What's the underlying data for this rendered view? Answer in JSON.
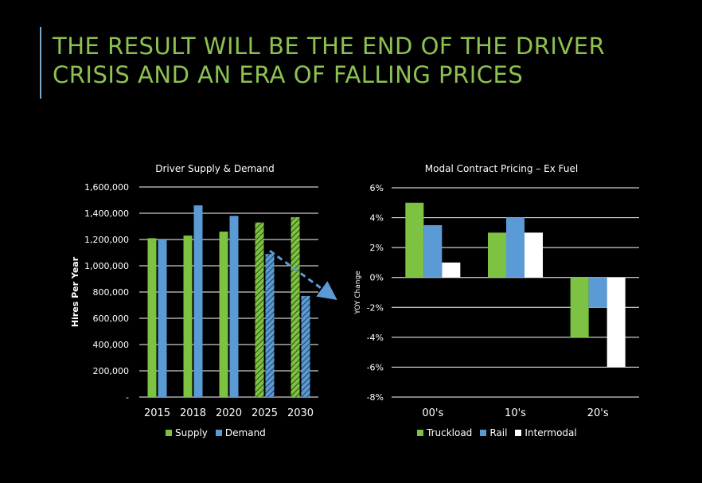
{
  "slide": {
    "title_line1": "THE RESULT WILL BE THE END OF THE DRIVER",
    "title_line2": "CRISIS AND AN ERA OF FALLING PRICES"
  },
  "colors": {
    "title": "#8dc152",
    "supply": "#7dc242",
    "demand": "#5b9bd5",
    "truckload": "#7dc242",
    "rail": "#5b9bd5",
    "intermodal": "#ffffff",
    "accent_line": "#7ba7c9"
  },
  "chart_data": [
    {
      "type": "bar",
      "title": "Driver Supply & Demand",
      "xlabel": "",
      "ylabel": "Hires Per Year",
      "categories": [
        "2015",
        "2018",
        "2020",
        "2025",
        "2030"
      ],
      "ylim": [
        0,
        1600000
      ],
      "yticks": [
        0,
        200000,
        400000,
        600000,
        800000,
        1000000,
        1200000,
        1400000,
        1600000
      ],
      "ytick_labels": [
        "-",
        "200,000",
        "400,000",
        "600,000",
        "800,000",
        "1,000,000",
        "1,200,000",
        "1,400,000",
        "1,600,000"
      ],
      "series": [
        {
          "name": "Supply",
          "values": [
            1210000,
            1230000,
            1260000,
            1330000,
            1370000
          ],
          "forecast_from_index": 3
        },
        {
          "name": "Demand",
          "values": [
            1200000,
            1460000,
            1380000,
            1090000,
            770000
          ],
          "forecast_from_index": 3
        }
      ],
      "legend": "bottom",
      "grid": true,
      "annotation": "dashed arrow indicating declining demand from 2025 to 2030"
    },
    {
      "type": "bar",
      "title": "Modal Contract Pricing – Ex Fuel",
      "xlabel": "",
      "ylabel": "YOY Change",
      "categories": [
        "00's",
        "10's",
        "20's"
      ],
      "ylim": [
        -8,
        6
      ],
      "yticks": [
        -8,
        -6,
        -4,
        -2,
        0,
        2,
        4,
        6
      ],
      "ytick_labels": [
        "-8%",
        "-6%",
        "-4%",
        "-2%",
        "0%",
        "2%",
        "4%",
        "6%"
      ],
      "series": [
        {
          "name": "Truckload",
          "values": [
            5,
            3,
            -4
          ]
        },
        {
          "name": "Rail",
          "values": [
            3.5,
            4,
            -2
          ]
        },
        {
          "name": "Intermodal",
          "values": [
            1,
            3,
            -6
          ]
        }
      ],
      "legend": "bottom",
      "grid": true
    }
  ]
}
